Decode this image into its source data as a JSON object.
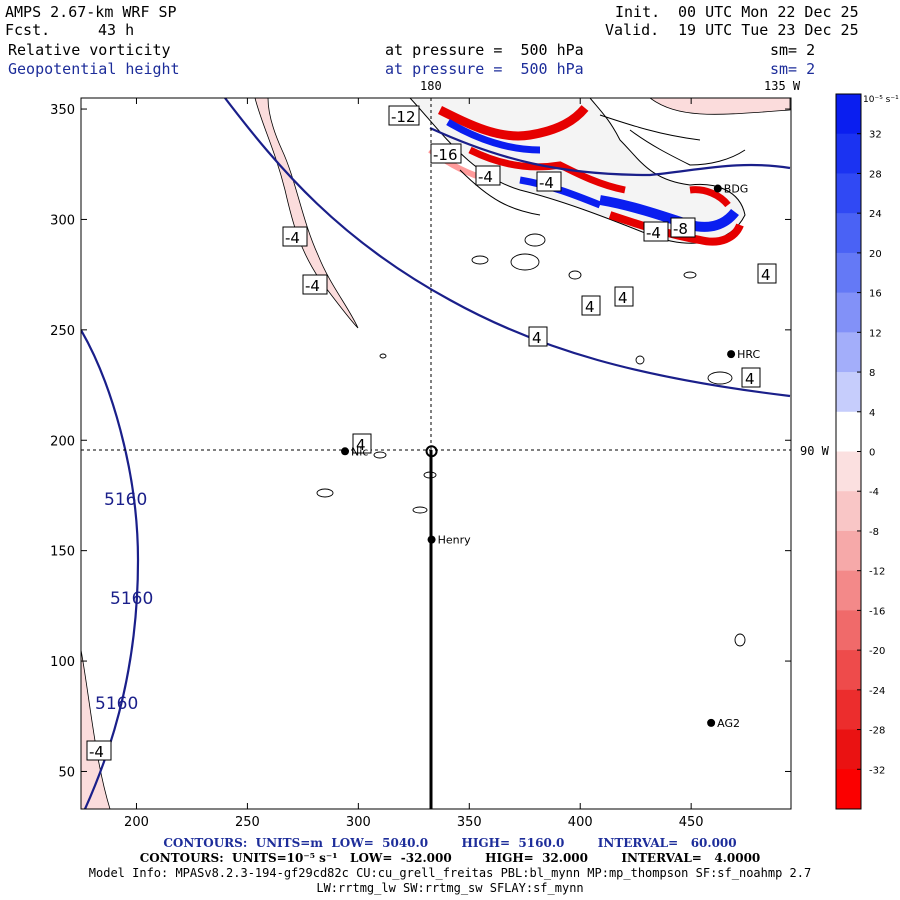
{
  "header": {
    "model": "AMPS 2.67-km WRF SP",
    "fcst_label": "Fcst.",
    "fcst_value": "43 h",
    "init_label": "Init.",
    "init_value": "00 UTC Mon 22 Dec 25",
    "valid_label": "Valid.",
    "valid_value": "19 UTC Tue 23 Dec 25",
    "field1": "Relative vorticity",
    "field1_level": "at pressure =  500 hPa",
    "field1_sm": "sm= 2",
    "field2": "Geopotential height",
    "field2_level": "at pressure =  500 hPa",
    "field2_sm": "sm= 2"
  },
  "map_labels": {
    "lon_180": "180",
    "lon_135w": "135 W",
    "lon_90w": "90 W"
  },
  "stations": [
    {
      "name": "HRC",
      "x": 468,
      "y": 239
    },
    {
      "name": "Henry",
      "x": 333,
      "y": 155
    },
    {
      "name": "AG2",
      "x": 459,
      "y": 72
    },
    {
      "name": "Nic",
      "x": 294,
      "y": 195
    },
    {
      "name": "BDG",
      "x": 462,
      "y": 314
    }
  ],
  "chart_data": {
    "type": "contour",
    "xlim": [
      175,
      495
    ],
    "ylim": [
      33,
      355
    ],
    "xticks": [
      200,
      250,
      300,
      350,
      400,
      450
    ],
    "yticks": [
      50,
      100,
      150,
      200,
      250,
      300,
      350
    ],
    "height_contours": {
      "units": "m",
      "low": 5040.0,
      "high": 5160.0,
      "interval": 60.0,
      "labels": [
        "5160",
        "5160",
        "5160"
      ]
    },
    "vorticity_contours": {
      "units": "10⁻⁵ s⁻¹",
      "low": -32.0,
      "high": 32.0,
      "interval": 4.0,
      "labels": [
        "-12",
        "-16",
        "-4",
        "-4",
        "-4",
        "-4",
        "-4",
        "-4",
        "-4",
        "-4",
        "-8",
        "4",
        "4",
        "4",
        "4",
        "4",
        "4"
      ]
    },
    "colorbar": {
      "unit": "10⁻⁵ s⁻¹",
      "ticks": [
        32,
        28,
        24,
        20,
        16,
        12,
        8,
        4,
        0,
        -4,
        -8,
        -12,
        -16,
        -20,
        -24,
        -28,
        -32
      ],
      "colors": [
        "#0a1ef0",
        "#1b33f2",
        "#3049f4",
        "#4a62f5",
        "#6479f6",
        "#8291f8",
        "#a3aefa",
        "#c6cdfc",
        "#ffffff",
        "#fbe0e0",
        "#f9c6c6",
        "#f6a9a9",
        "#f38989",
        "#f06a6a",
        "#ee4b4b",
        "#ec2d2d",
        "#ea1212",
        "#fb0000"
      ]
    },
    "crosshair": {
      "x": 333,
      "y": 195
    }
  },
  "footer": {
    "line1": "CONTOURS:  UNITS=m  LOW=  5040.0        HIGH=  5160.0        INTERVAL=   60.000",
    "line2": "CONTOURS:  UNITS=10⁻⁵ s⁻¹   LOW=  -32.000        HIGH=  32.000        INTERVAL=   4.0000",
    "line3": "Model Info: MPASv8.2.3-194-gf29cd82c CU:cu_grell_freitas PBL:bl_mynn MP:mp_thompson SF:sf_noahmp 2.7",
    "line4": "LW:rrtmg_lw SW:rrtmg_sw SFLAY:sf_mynn"
  }
}
